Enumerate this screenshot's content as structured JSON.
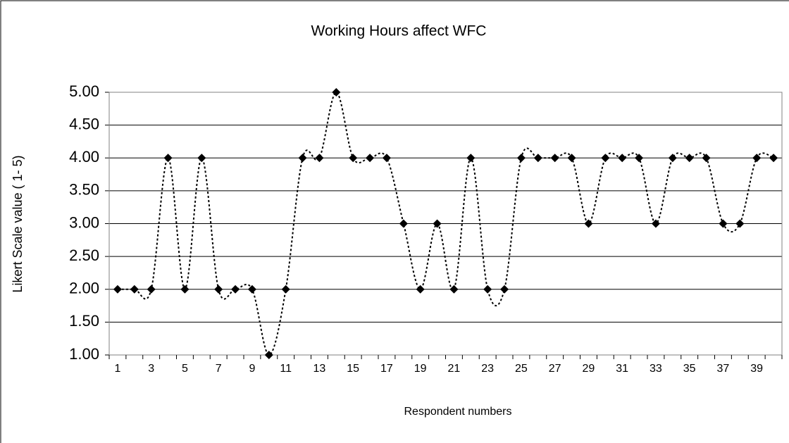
{
  "chart_data": {
    "type": "line",
    "title": "Working Hours affect WFC",
    "x_label": "Respondent numbers",
    "y_label": "Likert Scale value ( 1- 5)",
    "categories": [
      1,
      null,
      3,
      null,
      5,
      null,
      7,
      null,
      9,
      null,
      11,
      null,
      13,
      null,
      15,
      null,
      17,
      null,
      19,
      null,
      21,
      null,
      23,
      null,
      25,
      null,
      27,
      null,
      29,
      null,
      31,
      null,
      33,
      null,
      35,
      null,
      37,
      null,
      39,
      null
    ],
    "values": [
      2,
      2,
      2,
      4,
      2,
      4,
      2,
      2,
      2,
      1,
      2,
      4,
      4,
      5,
      4,
      4,
      4,
      3,
      2,
      3,
      2,
      4,
      2,
      2,
      4,
      4,
      4,
      4,
      3,
      4,
      4,
      4,
      3,
      4,
      4,
      4,
      3,
      3,
      4,
      4
    ],
    "color": "#000000",
    "ylim": [
      1,
      5
    ],
    "yticks": [
      {
        "value": 1,
        "label": "1.00"
      },
      {
        "value": 1.5,
        "label": "1.50"
      },
      {
        "value": 2,
        "label": "2.00"
      },
      {
        "value": 2.5,
        "label": "2.50"
      },
      {
        "value": 3,
        "label": "3.00"
      },
      {
        "value": 3.5,
        "label": "3.50"
      },
      {
        "value": 4,
        "label": "4.00"
      },
      {
        "value": 4.5,
        "label": "4.50"
      },
      {
        "value": 5,
        "label": "5.00"
      }
    ],
    "grid": true
  }
}
